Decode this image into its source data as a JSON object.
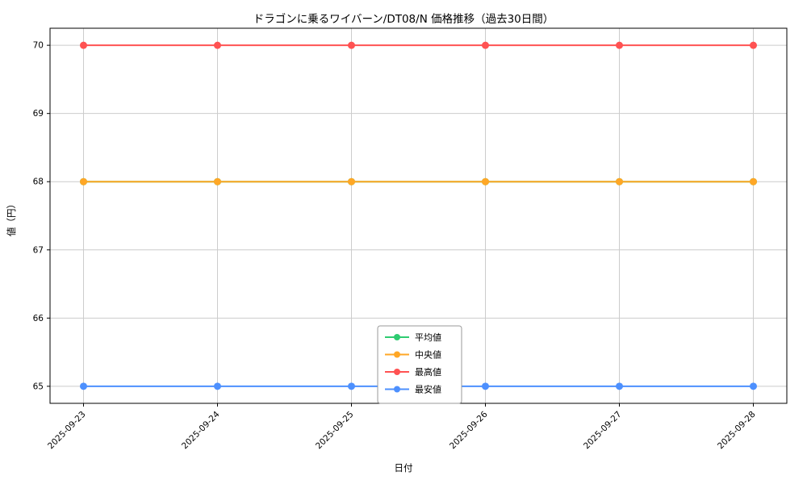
{
  "chart_data": {
    "type": "line",
    "title": "ドラゴンに乗るワイバーン/DT08/N 価格推移（過去30日間）",
    "xlabel": "日付",
    "ylabel": "値（円）",
    "x": [
      "2025-09-23",
      "2025-09-24",
      "2025-09-25",
      "2025-09-26",
      "2025-09-27",
      "2025-09-28"
    ],
    "yticks": [
      65,
      66,
      67,
      68,
      69,
      70
    ],
    "ylim": [
      64.75,
      70.25
    ],
    "grid": true,
    "legend_position": "lower center",
    "series": [
      {
        "name": "平均値",
        "color": "#2ecc71",
        "values": [
          68,
          68,
          68,
          68,
          68,
          68
        ]
      },
      {
        "name": "中央値",
        "color": "#ffa726",
        "values": [
          68,
          68,
          68,
          68,
          68,
          68
        ]
      },
      {
        "name": "最高値",
        "color": "#ff5252",
        "values": [
          70,
          70,
          70,
          70,
          70,
          70
        ]
      },
      {
        "name": "最安値",
        "color": "#4d90fe",
        "values": [
          65,
          65,
          65,
          65,
          65,
          65
        ]
      }
    ],
    "colors": {
      "grid": "#cccccc",
      "axis": "#000000",
      "legend_border": "#999999",
      "background": "#ffffff"
    }
  }
}
